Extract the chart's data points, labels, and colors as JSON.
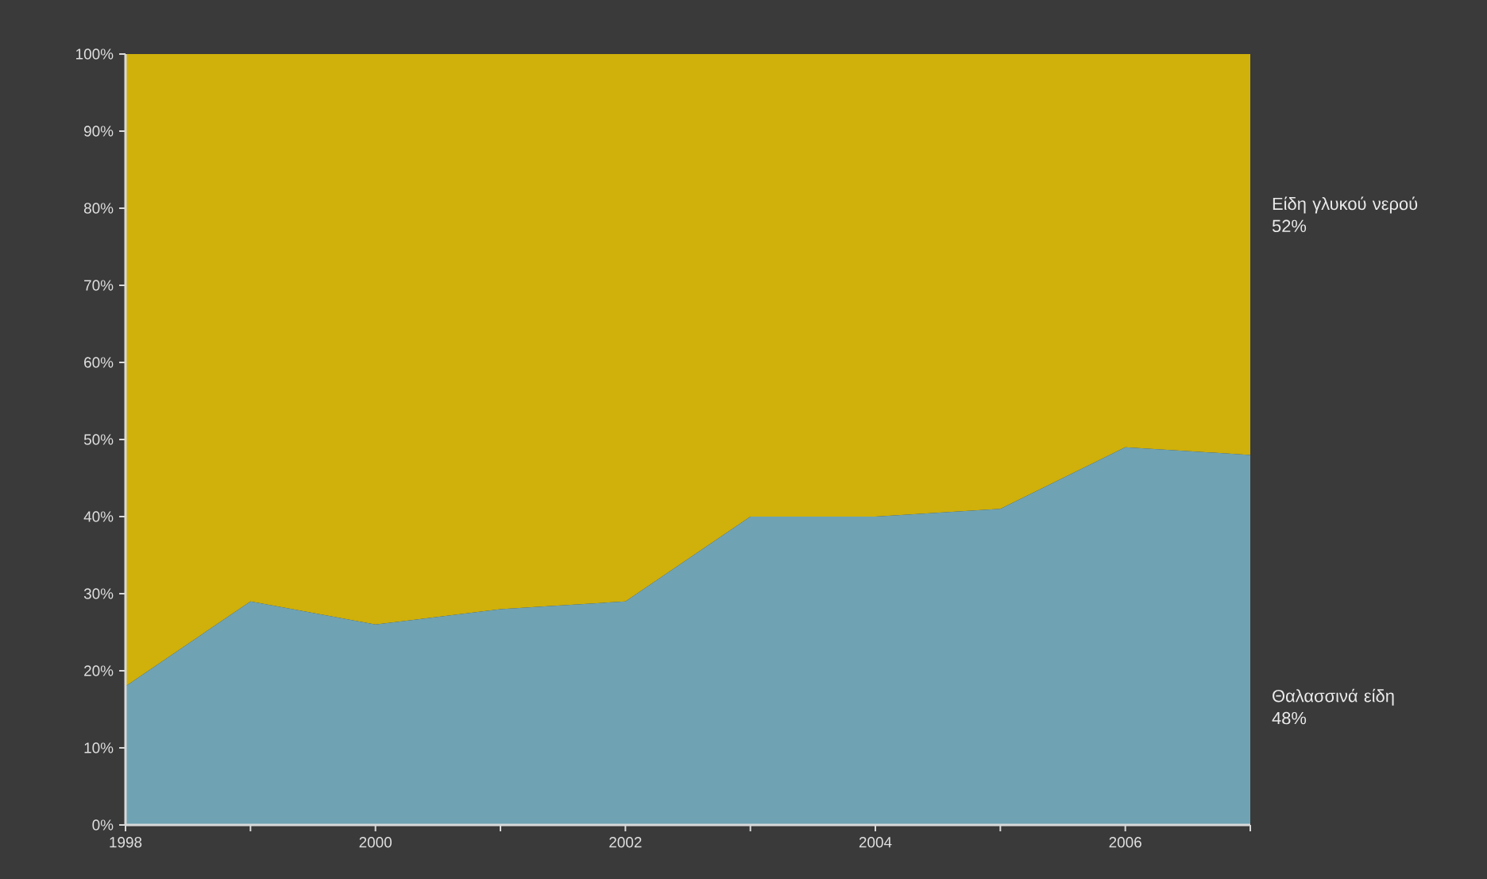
{
  "chart_data": {
    "type": "area",
    "stacked": true,
    "x": [
      1998,
      1999,
      2000,
      2001,
      2002,
      2003,
      2004,
      2005,
      2006,
      2007
    ],
    "series": [
      {
        "name": "Θαλασσινά είδη 48%",
        "color": "#6fa3b3",
        "values": [
          18,
          29,
          26,
          28,
          29,
          40,
          40,
          41,
          49,
          48
        ]
      },
      {
        "name": "Είδη γλυκού νερού 52%",
        "color": "#d0b00a",
        "values": [
          82,
          71,
          74,
          72,
          71,
          60,
          60,
          59,
          51,
          52
        ]
      }
    ],
    "xlim": [
      1998,
      2007
    ],
    "xticks": [
      1998,
      {
        "value": 1999,
        "label": null
      },
      2000,
      {
        "value": 2001,
        "label": null
      },
      2002,
      {
        "value": 2003,
        "label": null
      },
      2004,
      {
        "value": 2005,
        "label": null
      },
      2006,
      {
        "value": 2007,
        "label": null
      }
    ],
    "ylim": [
      0,
      100
    ],
    "yticks": [
      {
        "value": 0,
        "label": "0%"
      },
      {
        "value": 10,
        "label": "10%"
      },
      {
        "value": 20,
        "label": "20%"
      },
      {
        "value": 30,
        "label": "30%"
      },
      {
        "value": 40,
        "label": "40%"
      },
      {
        "value": 50,
        "label": "50%"
      },
      {
        "value": 60,
        "label": "60%"
      },
      {
        "value": 70,
        "label": "70%"
      },
      {
        "value": 80,
        "label": "80%"
      },
      {
        "value": 90,
        "label": "90%"
      },
      {
        "value": 100,
        "label": "100%"
      }
    ]
  }
}
